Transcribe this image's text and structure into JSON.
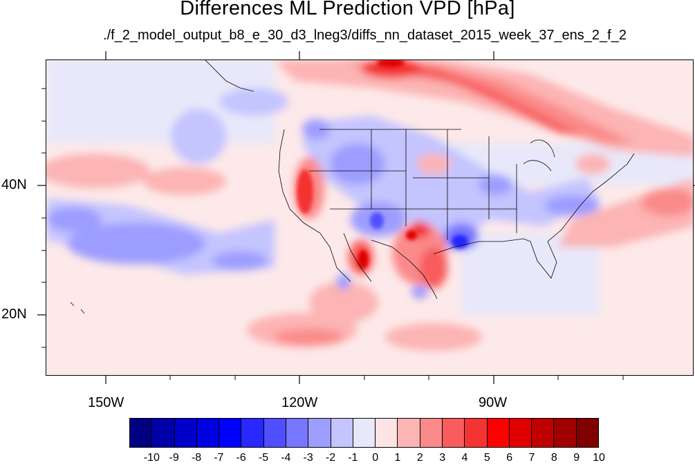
{
  "title": "Differences ML Prediction VPD [hPa]",
  "subtitle": "./f_2_model_output_b8_e_30_d3_lneg3/diffs_nn_dataset_2015_week_37_ens_2_f_2",
  "map": {
    "lat_labels": [
      "40N",
      "20N"
    ],
    "lon_labels": [
      "150W",
      "120W",
      "90W"
    ]
  },
  "colorbar": {
    "labels": [
      "-10",
      "-9",
      "-8",
      "-7",
      "-6",
      "-5",
      "-4",
      "-3",
      "-2",
      "-1",
      "0",
      "1",
      "2",
      "3",
      "4",
      "5",
      "6",
      "7",
      "8",
      "9",
      "10"
    ],
    "colors": [
      "#000080",
      "#0000a8",
      "#0000c8",
      "#0000e0",
      "#0000ff",
      "#2828ff",
      "#4f4fff",
      "#7676ff",
      "#9d9dff",
      "#c4c4ff",
      "#e8e8fa",
      "#fde3e3",
      "#fcb4b4",
      "#fb8a8a",
      "#f85c5c",
      "#f43333",
      "#ff0000",
      "#e00000",
      "#c00000",
      "#a00000",
      "#800000"
    ]
  }
}
